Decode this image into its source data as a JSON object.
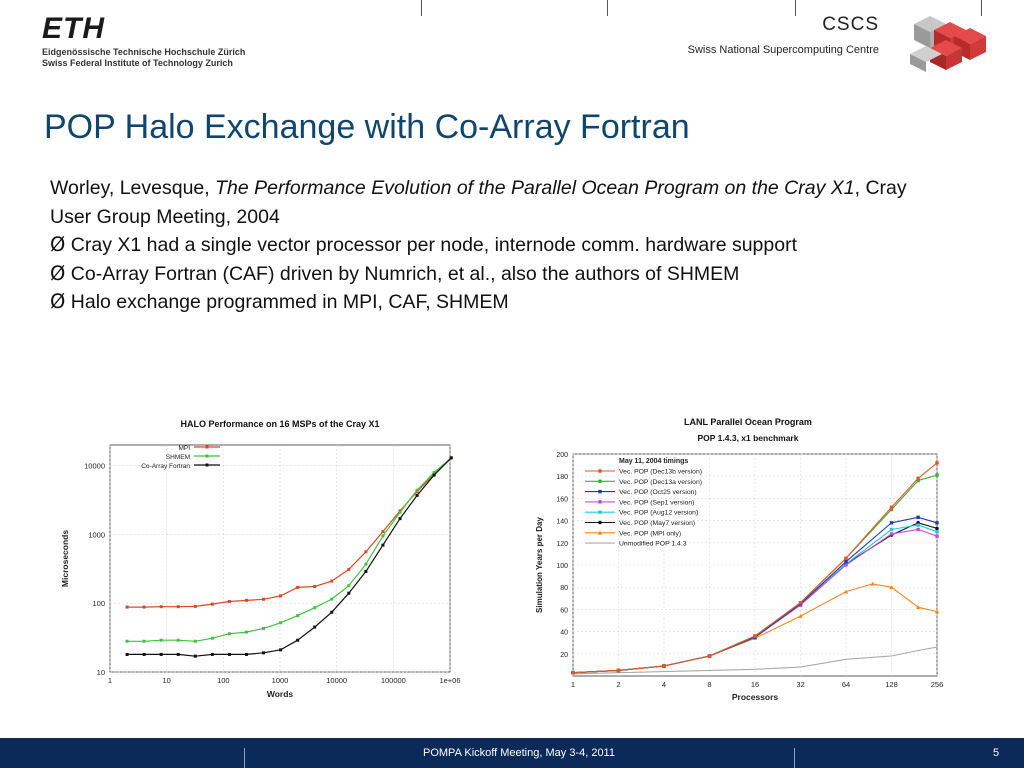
{
  "header": {
    "eth_word": "ETH",
    "eth_line1": "Eidgenössische Technische Hochschule Zürich",
    "eth_line2": "Swiss Federal Institute of Technology Zurich",
    "cscs_word": "CSCS",
    "cscs_line": "Swiss National Supercomputing Centre"
  },
  "slide": {
    "title": "POP Halo Exchange with Co-Array Fortran",
    "citation_authors": "Worley, Levesque, ",
    "citation_title": "The Performance Evolution of the Parallel Ocean Program on the Cray X1",
    "citation_rest": ", Cray User Group Meeting, 2004",
    "bullets": [
      "Cray X1 had a single vector processor per node, internode comm. hardware support",
      "Co-Array Fortran (CAF) driven by Numrich, et al., also the authors of SHMEM",
      "Halo exchange programmed in MPI, CAF, SHMEM"
    ],
    "bullet_marker": "Ø"
  },
  "chart_data": [
    {
      "type": "line",
      "title": "HALO Performance on 16 MSPs of the Cray X1",
      "xlabel": "Words",
      "ylabel": "Microseconds",
      "xscale": "log",
      "yscale": "log",
      "xlim": [
        1,
        1000000
      ],
      "ylim": [
        10,
        20000
      ],
      "xticks": [
        "1",
        "10",
        "100",
        "1000",
        "10000",
        "100000",
        "1e+06"
      ],
      "yticks": [
        "10",
        "100",
        "1000",
        "10000"
      ],
      "legend_position": "top-left",
      "grid": true,
      "series": [
        {
          "name": "MPI",
          "color": "#d9482b",
          "x": [
            2,
            4,
            8,
            16,
            32,
            64,
            128,
            256,
            512,
            1024,
            2048,
            4096,
            8192,
            16384,
            32768,
            65536,
            131072,
            262144,
            524288,
            1048576
          ],
          "y": [
            88,
            88,
            89,
            89,
            90,
            97,
            106,
            110,
            114,
            128,
            170,
            175,
            210,
            310,
            560,
            1100,
            2200,
            4200,
            7500,
            13000
          ]
        },
        {
          "name": "SHMEM",
          "color": "#3ec43e",
          "x": [
            2,
            4,
            8,
            16,
            32,
            64,
            128,
            256,
            512,
            1024,
            2048,
            4096,
            8192,
            16384,
            32768,
            65536,
            131072,
            262144,
            524288,
            1048576
          ],
          "y": [
            28,
            28,
            29,
            29,
            28,
            31,
            36,
            38,
            43,
            52,
            66,
            86,
            115,
            180,
            370,
            950,
            2100,
            4400,
            8000,
            13000
          ]
        },
        {
          "name": "Co-Array Fortran",
          "color": "#111111",
          "x": [
            2,
            4,
            8,
            16,
            32,
            64,
            128,
            256,
            512,
            1024,
            2048,
            4096,
            8192,
            16384,
            32768,
            65536,
            131072,
            262144,
            524288,
            1048576
          ],
          "y": [
            18,
            18,
            18,
            18,
            17,
            18,
            18,
            18,
            19,
            21,
            29,
            45,
            74,
            140,
            290,
            700,
            1700,
            3700,
            7300,
            13000
          ]
        }
      ]
    },
    {
      "type": "line",
      "title": "LANL Parallel Ocean Program",
      "subtitle": "POP 1.4.3, x1 benchmark",
      "xlabel": "Processors",
      "ylabel": "Simulation Years per Day",
      "xscale": "log2",
      "xlim": [
        1,
        256
      ],
      "ylim": [
        0,
        200
      ],
      "xticks": [
        "1",
        "2",
        "4",
        "8",
        "16",
        "32",
        "64",
        "128",
        "256"
      ],
      "yticks": [
        "20",
        "40",
        "60",
        "80",
        "100",
        "120",
        "140",
        "160",
        "180",
        "200"
      ],
      "legend_title": "May 11, 2004 timings",
      "legend_position": "top-left",
      "grid": true,
      "series": [
        {
          "name": "Vec. POP (Dec13b version)",
          "color": "#e8542a",
          "marker": "+",
          "x": [
            1,
            2,
            4,
            8,
            16,
            32,
            64,
            128,
            192,
            256
          ],
          "y": [
            3,
            5,
            9,
            18,
            36,
            66,
            106,
            152,
            178,
            192
          ]
        },
        {
          "name": "Vec. POP (Dec13a version)",
          "color": "#2fb52f",
          "marker": "x",
          "x": [
            1,
            2,
            4,
            8,
            16,
            32,
            64,
            128,
            192,
            256
          ],
          "y": [
            3,
            5,
            9,
            18,
            36,
            66,
            106,
            150,
            176,
            181
          ]
        },
        {
          "name": "Vec. POP (Oct25 version)",
          "color": "#1f3bb3",
          "marker": "*",
          "x": [
            1,
            2,
            4,
            8,
            16,
            32,
            64,
            128,
            192,
            256
          ],
          "y": [
            3,
            5,
            9,
            18,
            35,
            65,
            103,
            138,
            143,
            138
          ]
        },
        {
          "name": "Vec. POP (Sep1 version)",
          "color": "#c34fd6",
          "marker": "square",
          "x": [
            1,
            2,
            4,
            8,
            16,
            32,
            64,
            128,
            192,
            256
          ],
          "y": [
            3,
            5,
            9,
            18,
            35,
            64,
            100,
            128,
            132,
            126
          ]
        },
        {
          "name": "Vec. POP (Aug12 version)",
          "color": "#27c6d8",
          "marker": "square",
          "x": [
            1,
            2,
            4,
            8,
            16,
            32,
            64,
            128,
            192,
            256
          ],
          "y": [
            3,
            5,
            9,
            18,
            35,
            64,
            101,
            132,
            136,
            130
          ]
        },
        {
          "name": "Vec. POP (May7 version)",
          "color": "#111111",
          "marker": "circle",
          "x": [
            1,
            2,
            4,
            8,
            16,
            32,
            64,
            128,
            192,
            256
          ],
          "y": [
            3,
            5,
            9,
            18,
            35,
            64,
            101,
            127,
            138,
            133
          ]
        },
        {
          "name": "Vec. POP (MPI only)",
          "color": "#ef8a22",
          "marker": "triangle",
          "x": [
            1,
            2,
            4,
            8,
            16,
            32,
            64,
            96,
            128,
            192,
            256
          ],
          "y": [
            3,
            5,
            9,
            18,
            34,
            54,
            76,
            83,
            80,
            62,
            58
          ]
        },
        {
          "name": "Unmodified POP 1.4.3",
          "color": "#aaaaaa",
          "marker": "none",
          "x": [
            1,
            2,
            4,
            8,
            16,
            32,
            64,
            128,
            192,
            256
          ],
          "y": [
            2,
            3,
            4,
            5,
            6,
            8,
            15,
            18,
            23,
            26
          ]
        }
      ]
    }
  ],
  "footer": {
    "text": "POMPA Kickoff Meeting, May 3-4, 2011",
    "page": "5",
    "bg_color": "#0b2a5a"
  }
}
